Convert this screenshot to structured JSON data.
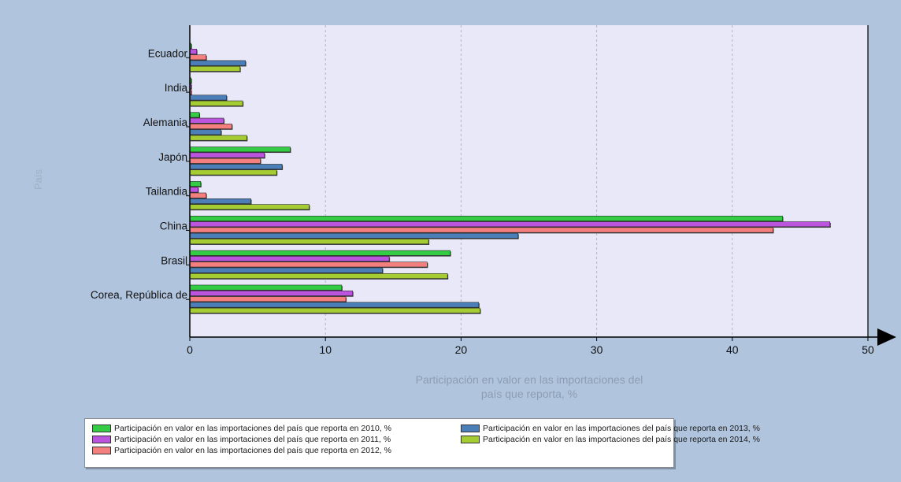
{
  "chart_data": {
    "type": "bar",
    "orientation": "horizontal",
    "categories": [
      "Ecuador",
      "India",
      "Alemania",
      "Japón",
      "Tailandia",
      "China",
      "Brasil",
      "Corea, República de"
    ],
    "series": [
      {
        "name": "Participación en valor en las importaciones del país que reporta en 2010, %",
        "color": "#33cc44",
        "values": [
          0.1,
          0.1,
          0.7,
          7.4,
          0.8,
          43.7,
          19.2,
          11.2
        ]
      },
      {
        "name": "Participación en valor en las importaciones del país que reporta en 2011, %",
        "color": "#bb55dd",
        "values": [
          0.5,
          0.1,
          2.5,
          5.5,
          0.6,
          47.2,
          14.7,
          12.0
        ]
      },
      {
        "name": "Participación en valor en las importaciones del país que reporta en 2012, %",
        "color": "#f47f7f",
        "values": [
          1.2,
          0.1,
          3.1,
          5.2,
          1.2,
          43.0,
          17.5,
          11.5
        ]
      },
      {
        "name": "Participación en valor en las importaciones del país que reporta en 2013, %",
        "color": "#4c7fb7",
        "values": [
          4.1,
          2.7,
          2.3,
          6.8,
          4.5,
          24.2,
          14.2,
          21.3
        ]
      },
      {
        "name": "Participación en valor en las importaciones del país que reporta en 2014, %",
        "color": "#a5cc33",
        "values": [
          3.7,
          3.9,
          4.2,
          6.4,
          8.8,
          17.6,
          19.0,
          21.4
        ]
      }
    ],
    "xlim": [
      0,
      50
    ],
    "xticks": [
      0,
      10,
      20,
      30,
      40,
      50
    ],
    "xlabel": "Participación en valor en las importaciones del país que reporta, %",
    "ylabel": "País",
    "grid": "vertical dashed",
    "legend_position": "bottom"
  },
  "axis": {
    "xlabel_line1": "Participación en valor en las importaciones del",
    "xlabel_line2": "país que reporta, %",
    "ylabel": "País"
  },
  "legend": {
    "items": [
      {
        "label": "Participación en valor en las importaciones del país que reporta en 2010, %",
        "color": "#33cc44"
      },
      {
        "label": "Participación en valor en las importaciones del país que reporta en 2013, %",
        "color": "#4c7fb7"
      },
      {
        "label": "Participación en valor en las importaciones del país que reporta en 2011, %",
        "color": "#bb55dd"
      },
      {
        "label": "Participación en valor en las importaciones del país que reporta en 2014, %",
        "color": "#a5cc33"
      },
      {
        "label": "Participación en valor en las importaciones del país que reporta en 2012, %",
        "color": "#f47f7f"
      }
    ]
  },
  "colors": {
    "background": "#b1c4dd",
    "plot_area": "#e8e8f8",
    "grid": "#a8b8cc"
  }
}
